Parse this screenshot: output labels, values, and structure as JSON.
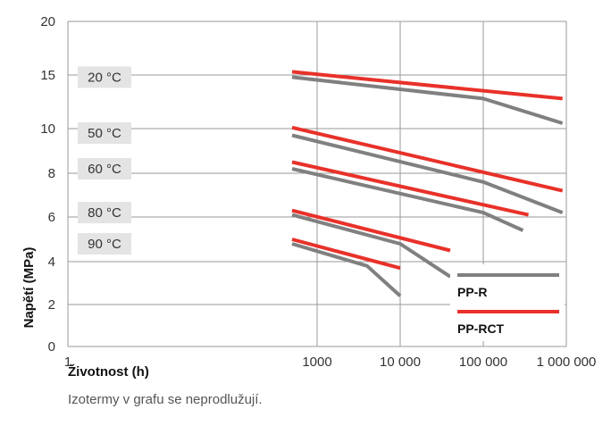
{
  "chart_data": {
    "type": "line",
    "xlabel": "Životnost (h)",
    "ylabel": "Napětí (MPa)",
    "x_scale": "log",
    "x_ticks": [
      {
        "value": 1,
        "label": "1"
      },
      {
        "value": 1000,
        "label": "1000"
      },
      {
        "value": 10000,
        "label": "10 000"
      },
      {
        "value": 100000,
        "label": "100 000"
      },
      {
        "value": 1000000,
        "label": "1 000 000"
      }
    ],
    "y_ticks": [
      {
        "value": 0,
        "label": "0"
      },
      {
        "value": 2,
        "label": "2"
      },
      {
        "value": 4,
        "label": "4"
      },
      {
        "value": 6,
        "label": "6"
      },
      {
        "value": 8,
        "label": "8"
      },
      {
        "value": 10,
        "label": "10"
      },
      {
        "value": 15,
        "label": "15"
      },
      {
        "value": 20,
        "label": "20"
      }
    ],
    "grid": true,
    "legend": {
      "placement": "bottom-right",
      "items": [
        {
          "name": "PP-R",
          "color": "#808080"
        },
        {
          "name": "PP-RCT",
          "color": "#e8312a"
        }
      ]
    },
    "series": [
      {
        "group": "PP-R",
        "label": "20 °C",
        "points": [
          [
            500,
            14.8
          ],
          [
            100000,
            12.8
          ],
          [
            900000,
            10.5
          ]
        ]
      },
      {
        "group": "PP-RCT",
        "label": "20 °C",
        "points": [
          [
            500,
            15.3
          ],
          [
            900000,
            12.8
          ]
        ]
      },
      {
        "group": "PP-R",
        "label": "50 °C",
        "points": [
          [
            500,
            9.7
          ],
          [
            100000,
            7.6
          ],
          [
            900000,
            6.2
          ]
        ]
      },
      {
        "group": "PP-RCT",
        "label": "50 °C",
        "points": [
          [
            500,
            10.1
          ],
          [
            900000,
            7.2
          ]
        ]
      },
      {
        "group": "PP-R",
        "label": "60 °C",
        "points": [
          [
            500,
            8.2
          ],
          [
            100000,
            6.2
          ],
          [
            300000,
            5.4
          ]
        ]
      },
      {
        "group": "PP-RCT",
        "label": "60 °C",
        "points": [
          [
            500,
            8.5
          ],
          [
            350000,
            6.1
          ]
        ]
      },
      {
        "group": "PP-R",
        "label": "80 °C",
        "points": [
          [
            500,
            6.1
          ],
          [
            10000,
            4.8
          ],
          [
            40000,
            3.3
          ]
        ]
      },
      {
        "group": "PP-RCT",
        "label": "80 °C",
        "points": [
          [
            500,
            6.3
          ],
          [
            40000,
            4.5
          ]
        ]
      },
      {
        "group": "PP-R",
        "label": "90 °C",
        "points": [
          [
            500,
            4.8
          ],
          [
            4000,
            3.8
          ],
          [
            10000,
            2.4
          ]
        ]
      },
      {
        "group": "PP-RCT",
        "label": "90 °C",
        "points": [
          [
            500,
            5.0
          ],
          [
            10000,
            3.7
          ]
        ]
      }
    ],
    "temperature_labels": [
      {
        "text": "20 °C",
        "y": 14.8
      },
      {
        "text": "50 °C",
        "y": 9.8
      },
      {
        "text": "60 °C",
        "y": 8.2
      },
      {
        "text": "80 °C",
        "y": 6.2
      },
      {
        "text": "90 °C",
        "y": 4.8
      }
    ],
    "colors": {
      "PP-R": "#808080",
      "PP-RCT": "#e8312a",
      "grid": "#9a9a9a",
      "label_bg": "#e4e4e4"
    }
  },
  "note": "Izotermy v grafu se neprodlužují."
}
